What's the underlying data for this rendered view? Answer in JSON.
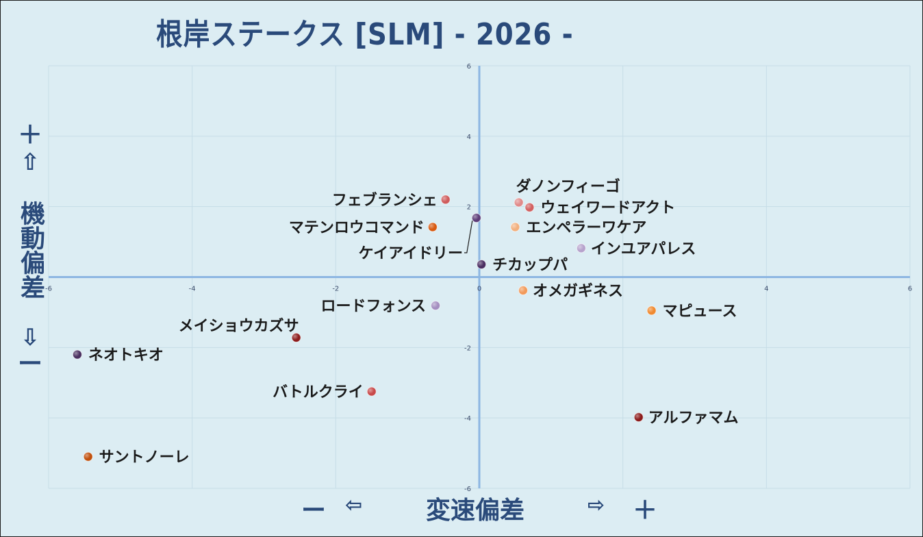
{
  "chart_data": {
    "type": "scatter",
    "title": "根岸ステークス [SLM]  - 2026 -",
    "xlabel": "変速偏差",
    "ylabel": "機動偏差",
    "xlim": [
      -6,
      6
    ],
    "ylim": [
      -6,
      6
    ],
    "xticks": [
      -6,
      -4,
      -2,
      0,
      2,
      4,
      6
    ],
    "yticks": [
      -6,
      -4,
      -2,
      0,
      2,
      4,
      6
    ],
    "x_tick_labels": [
      "-6",
      "-4",
      "-2",
      "0",
      "",
      "4",
      "6"
    ],
    "y_tick_labels": [
      "-6",
      "-4",
      "-2",
      "0",
      "2",
      "4",
      "6"
    ],
    "grid": true,
    "x_axis_symbols": {
      "minus": "ー",
      "left_arrow": "⇦",
      "right_arrow": "⇨",
      "plus": "＋"
    },
    "y_axis_symbols": {
      "plus": "＋",
      "up_arrow": "⇧",
      "down_arrow": "⇩",
      "minus": "ー"
    },
    "points": [
      {
        "name": "フェブランシェ",
        "x": -0.47,
        "y": 2.2,
        "color": "#cf5c5c"
      },
      {
        "name": "ダノンフィーゴ",
        "x": 0.55,
        "y": 2.12,
        "color": "#e08a8a"
      },
      {
        "name": "ウェイワードアクト",
        "x": 0.7,
        "y": 1.98,
        "color": "#d26060"
      },
      {
        "name": "マテンロウコマンド",
        "x": -0.65,
        "y": 1.42,
        "color": "#d85a10"
      },
      {
        "name": "ケイアイドリー",
        "x": -0.04,
        "y": 1.68,
        "color": "#5c3c78"
      },
      {
        "name": "エンペラーワケア",
        "x": 0.5,
        "y": 1.42,
        "color": "#f2b07e"
      },
      {
        "name": "インユアパレス",
        "x": 1.42,
        "y": 0.82,
        "color": "#b6a2cc"
      },
      {
        "name": "チカップパ",
        "x": 0.03,
        "y": 0.36,
        "color": "#4a2e62"
      },
      {
        "name": "オメガギネス",
        "x": 0.61,
        "y": -0.38,
        "color": "#f29a5a"
      },
      {
        "name": "ロードフォンス",
        "x": -0.61,
        "y": -0.81,
        "color": "#a48ec0"
      },
      {
        "name": "マピュース",
        "x": 2.4,
        "y": -0.95,
        "color": "#f08a30"
      },
      {
        "name": "メイショウカズサ",
        "x": -2.55,
        "y": -1.72,
        "color": "#8c1c1c"
      },
      {
        "name": "ネオトキオ",
        "x": -5.6,
        "y": -2.2,
        "color": "#4a3060"
      },
      {
        "name": "バトルクライ",
        "x": -1.5,
        "y": -3.25,
        "color": "#c84a4a"
      },
      {
        "name": "アルファマム",
        "x": 2.22,
        "y": -3.98,
        "color": "#8c1c1c"
      },
      {
        "name": "サントノーレ",
        "x": -5.45,
        "y": -5.1,
        "color": "#c0500c"
      }
    ]
  }
}
